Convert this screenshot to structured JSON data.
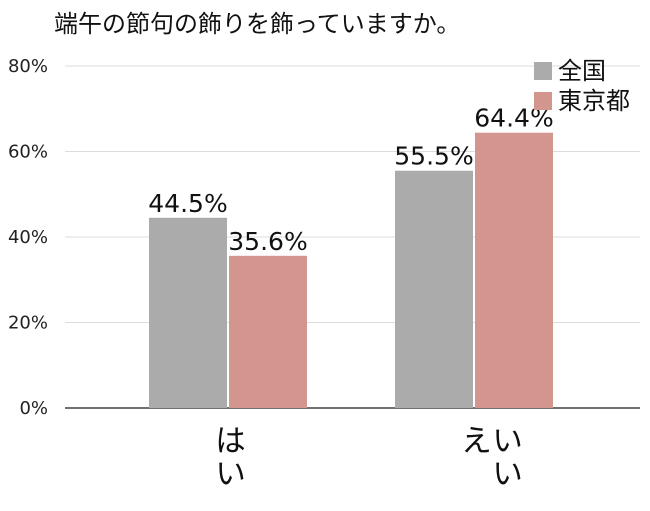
{
  "chart_data": {
    "type": "bar",
    "title": "端午の節句の飾りを飾っていますか。",
    "categories": [
      "はい",
      "いいえ"
    ],
    "series": [
      {
        "name": "全国",
        "values": [
          44.5,
          55.5
        ],
        "color": "#ababab"
      },
      {
        "name": "東京都",
        "values": [
          35.6,
          64.4
        ],
        "color": "#d2968f"
      }
    ],
    "value_labels": [
      [
        "44.5%",
        "55.5%"
      ],
      [
        "35.6%",
        "64.4%"
      ]
    ],
    "ylim": [
      0,
      80
    ],
    "yticks": [
      0,
      20,
      40,
      60,
      80
    ],
    "ytick_labels": [
      "0%",
      "20%",
      "40%",
      "60%",
      "80%"
    ],
    "grid": true,
    "legend_position": "top-right"
  }
}
